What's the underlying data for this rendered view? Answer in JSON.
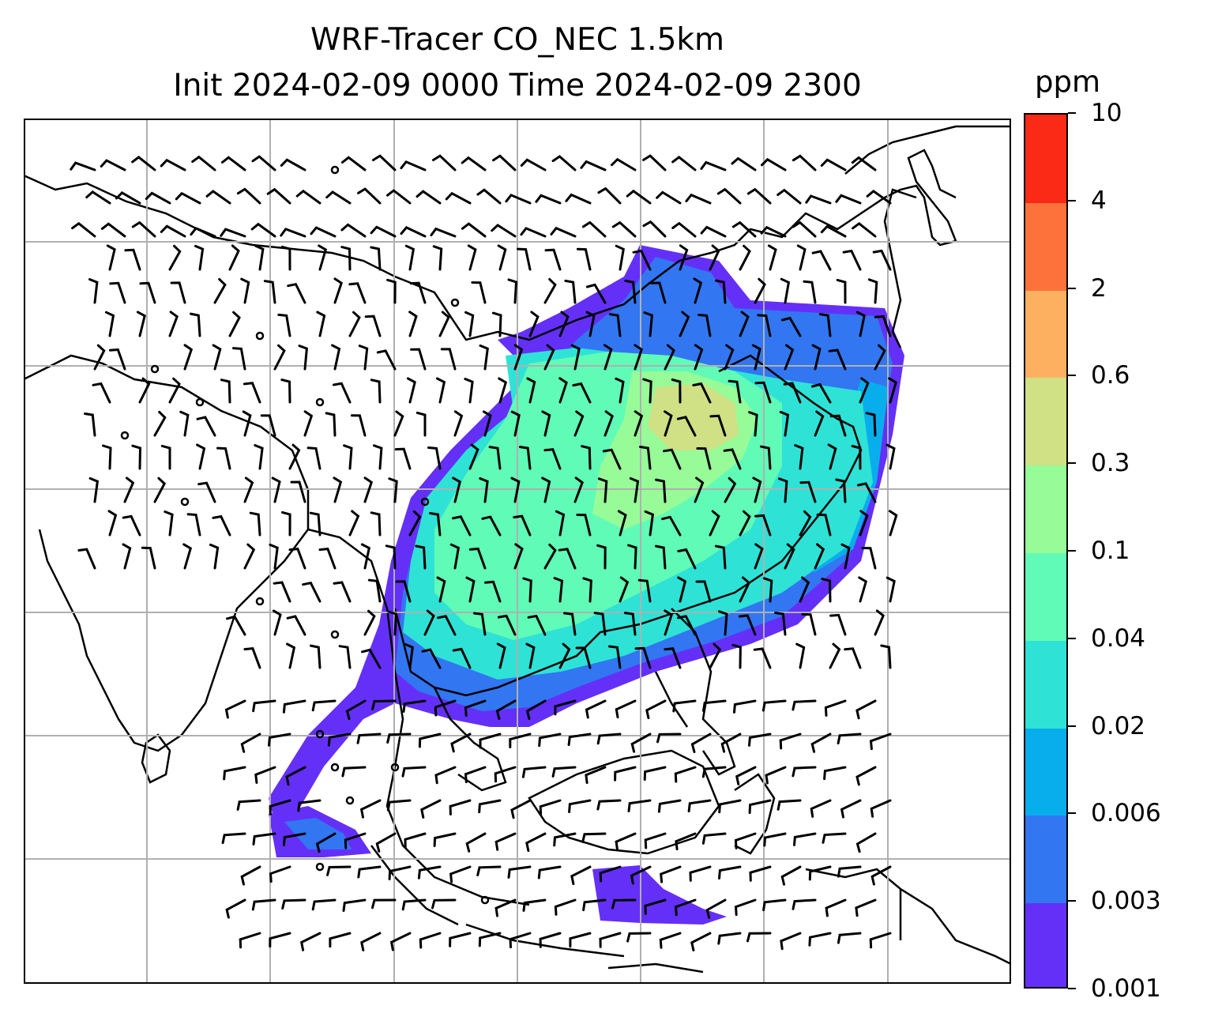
{
  "title": {
    "line1": "WRF-Tracer CO_NEC 1.5km",
    "line2": "Init 2024-02-09 0000 Time 2024-02-09 2300"
  },
  "colorbar": {
    "unit": "ppm",
    "levels": [
      "0.001",
      "0.003",
      "0.006",
      "0.02",
      "0.04",
      "0.1",
      "0.3",
      "0.6",
      "2",
      "4",
      "10"
    ],
    "colors": [
      "#6430f7",
      "#3276f2",
      "#08aeec",
      "#2ee2d6",
      "#60fbb7",
      "#97fb98",
      "#cfe085",
      "#fdb160",
      "#fd723a",
      "#fb2a17"
    ]
  },
  "map": {
    "gridlines": true,
    "coastline_color": "#000000",
    "grid_color": "#b0b0b0"
  }
}
